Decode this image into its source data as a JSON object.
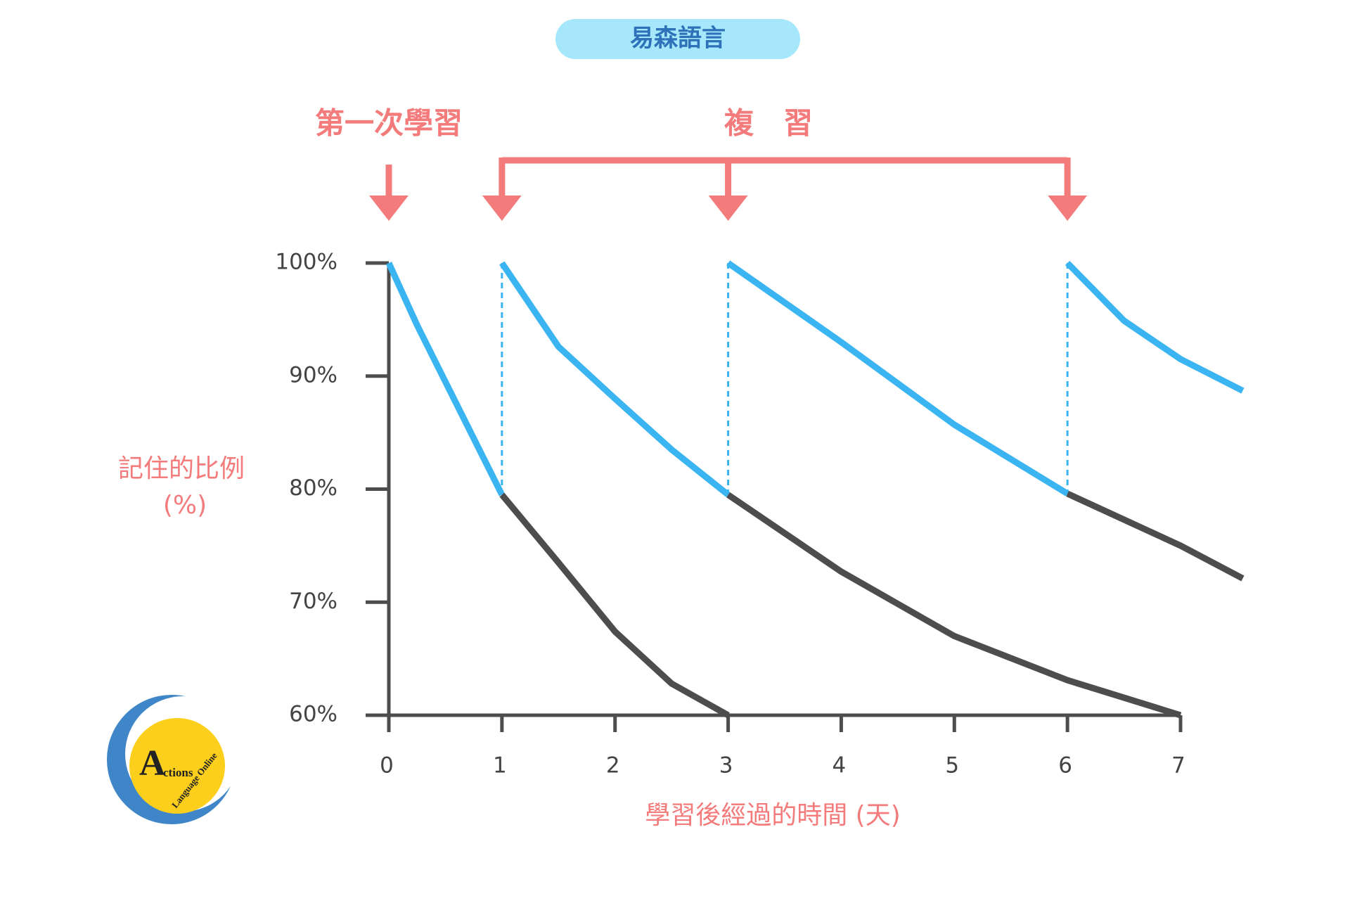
{
  "chart_data": {
    "type": "line",
    "title": "易森語言",
    "annotations": [
      "第一次學習",
      "複　習"
    ],
    "ylabel": [
      "記住的比例",
      "(%)"
    ],
    "xlabel": "學習後經過的時間 (天)",
    "xlim": [
      0,
      7
    ],
    "xticks": [
      0,
      1,
      2,
      3,
      4,
      5,
      6,
      7
    ],
    "ylim": [
      60,
      100
    ],
    "yticks": [
      {
        "value": 60,
        "label": "60%"
      },
      {
        "value": 70,
        "label": "70%"
      },
      {
        "value": 80,
        "label": "80%"
      },
      {
        "value": 90,
        "label": "90%"
      },
      {
        "value": 100,
        "label": "100%"
      }
    ],
    "series": [
      {
        "color": "#3bb4f2",
        "x": [
          0,
          0.25,
          0.5,
          0.75,
          1
        ],
        "values": [
          100,
          94.5,
          89.5,
          84.5,
          79.5
        ]
      },
      {
        "color": "#4d4d4d",
        "x": [
          1,
          1.5,
          2,
          2.5,
          3
        ],
        "values": [
          79.5,
          73.5,
          67.4,
          62.8,
          60
        ]
      },
      {
        "color": "#3bb4f2",
        "x": [
          1,
          1.5,
          2,
          2.5,
          3
        ],
        "values": [
          100,
          92.6,
          88,
          83.5,
          79.5
        ]
      },
      {
        "color": "#4d4d4d",
        "x": [
          3,
          4,
          5,
          6,
          7
        ],
        "values": [
          79.5,
          72.7,
          67,
          63.1,
          60
        ]
      },
      {
        "color": "#3bb4f2",
        "x": [
          3,
          4,
          5,
          6
        ],
        "values": [
          100,
          93,
          85.7,
          79.6
        ]
      },
      {
        "color": "#4d4d4d",
        "x": [
          6,
          7,
          7.55
        ],
        "values": [
          79.6,
          75,
          72.1
        ]
      },
      {
        "color": "#3bb4f2",
        "x": [
          6,
          6.5,
          7,
          7.55
        ],
        "values": [
          100,
          94.9,
          91.5,
          88.7
        ]
      }
    ]
  },
  "logo": {
    "big": "A",
    "word": "ctions",
    "sub": "Language Online"
  }
}
